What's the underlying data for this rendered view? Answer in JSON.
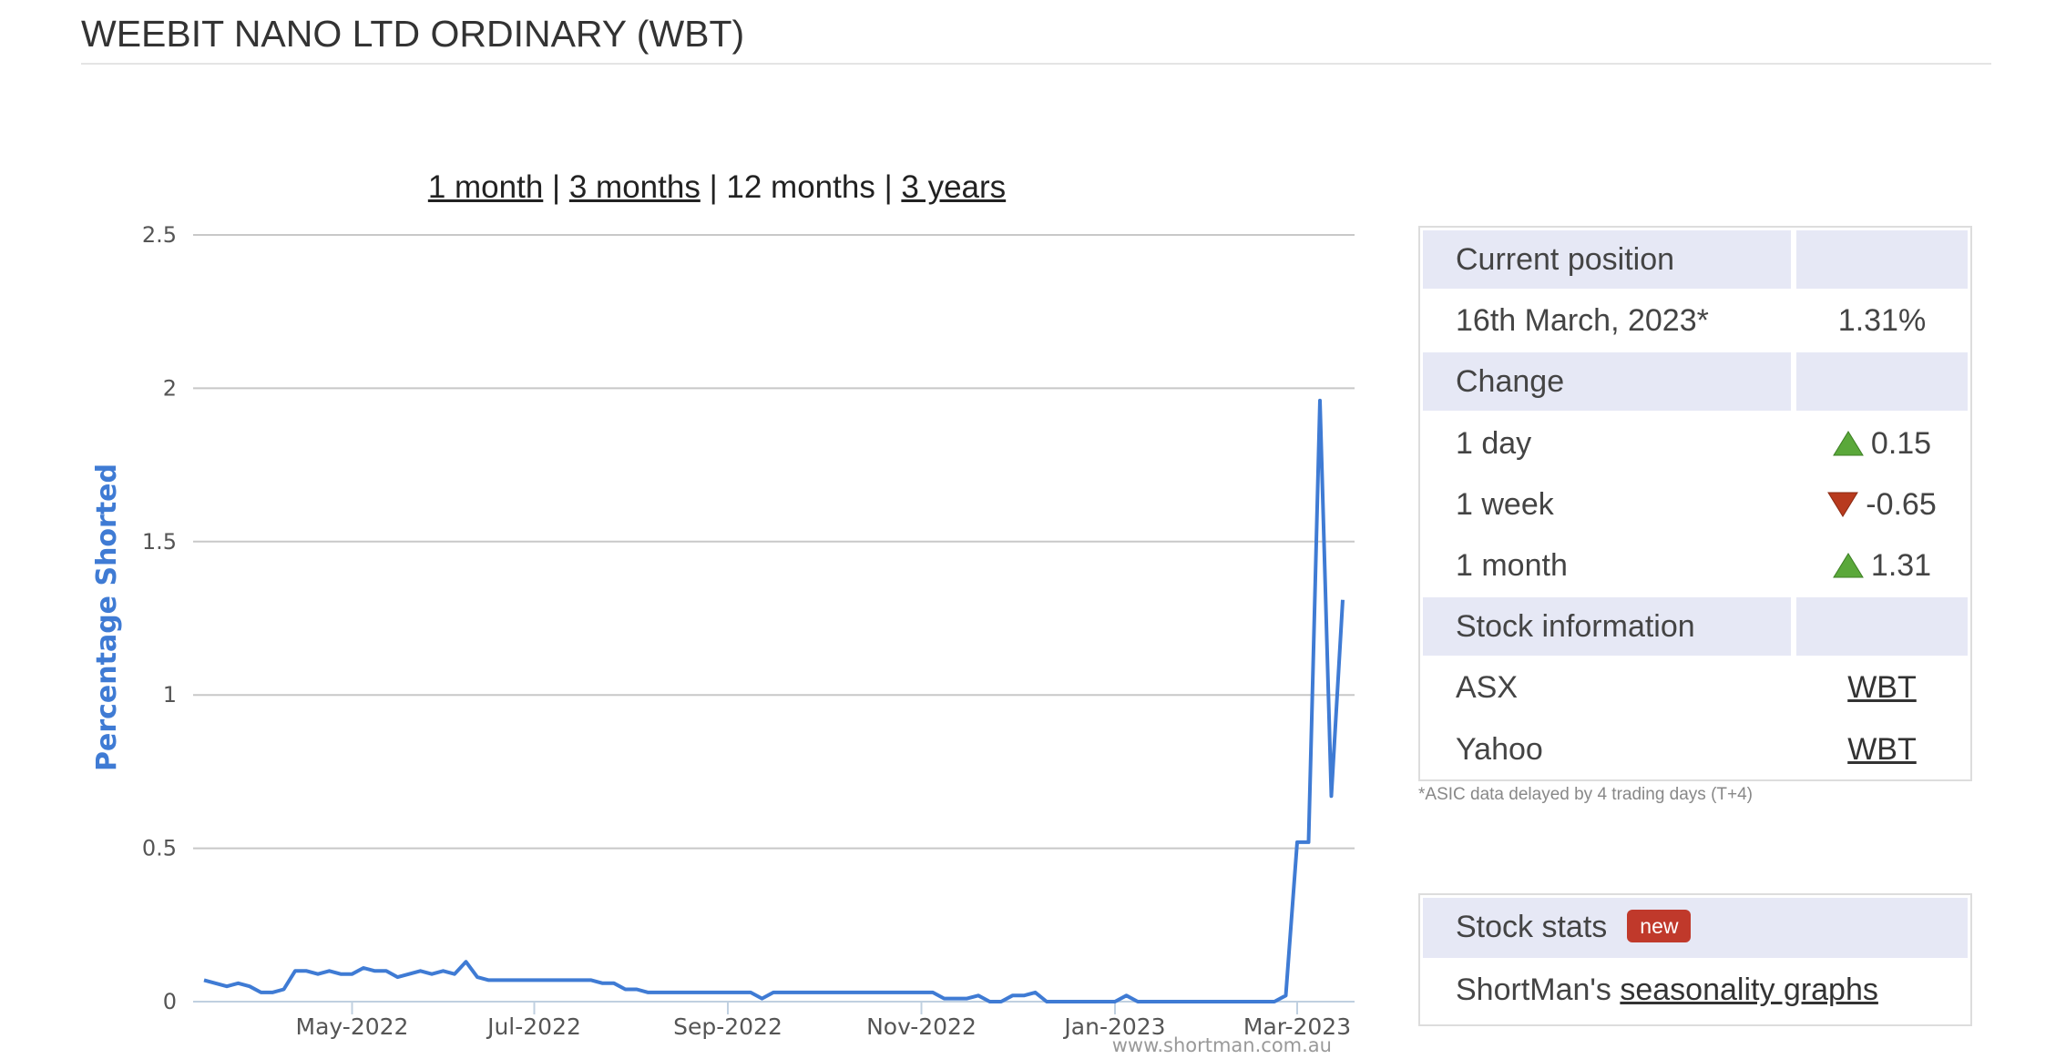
{
  "header": {
    "title": "WEEBIT NANO LTD ORDINARY (WBT)"
  },
  "range_links": [
    "1 month",
    "3 months",
    "12 months",
    "3 years"
  ],
  "range_separator": "|",
  "chart_data": {
    "type": "line",
    "y_label": "Percentage Shorted",
    "color": "#3f7bd4",
    "categories": [
      null,
      null,
      null,
      null,
      null,
      null,
      null,
      null,
      null,
      null,
      null,
      null,
      null,
      "May-2022",
      null,
      null,
      null,
      null,
      null,
      null,
      null,
      null,
      null,
      null,
      null,
      null,
      null,
      null,
      null,
      "Jul-2022",
      null,
      null,
      null,
      null,
      null,
      null,
      null,
      null,
      null,
      null,
      null,
      null,
      null,
      null,
      null,
      null,
      "Sep-2022",
      null,
      null,
      null,
      null,
      null,
      null,
      null,
      null,
      null,
      null,
      null,
      null,
      null,
      null,
      null,
      null,
      "Nov-2022",
      null,
      null,
      null,
      null,
      null,
      null,
      null,
      null,
      null,
      null,
      null,
      null,
      null,
      null,
      null,
      null,
      "Jan-2023",
      null,
      null,
      null,
      null,
      null,
      null,
      null,
      null,
      null,
      null,
      null,
      null,
      null,
      null,
      null,
      "Mar-2023",
      null,
      null,
      null,
      null
    ],
    "values": [
      0.07,
      0.06,
      0.05,
      0.06,
      0.05,
      0.03,
      0.03,
      0.04,
      0.1,
      0.1,
      0.09,
      0.1,
      0.09,
      0.09,
      0.11,
      0.1,
      0.1,
      0.08,
      0.09,
      0.1,
      0.09,
      0.1,
      0.09,
      0.13,
      0.08,
      0.07,
      0.07,
      0.07,
      0.07,
      0.07,
      0.07,
      0.07,
      0.07,
      0.07,
      0.07,
      0.06,
      0.06,
      0.04,
      0.04,
      0.03,
      0.03,
      0.03,
      0.03,
      0.03,
      0.03,
      0.03,
      0.03,
      0.03,
      0.03,
      0.01,
      0.03,
      0.03,
      0.03,
      0.03,
      0.03,
      0.03,
      0.03,
      0.03,
      0.03,
      0.03,
      0.03,
      0.03,
      0.03,
      0.03,
      0.03,
      0.01,
      0.01,
      0.01,
      0.02,
      0,
      0,
      0.02,
      0.02,
      0.03,
      0,
      0,
      0,
      0,
      0,
      0,
      0,
      0.02,
      0,
      0,
      0,
      0,
      0,
      0,
      0,
      0,
      0,
      0,
      0,
      0,
      0,
      0.02,
      0.52,
      0.52,
      1.96,
      0.67,
      1.31
    ],
    "ylim": [
      0,
      2.5
    ],
    "yticks": [
      0,
      0.5,
      1,
      1.5,
      2,
      2.5
    ],
    "grid": true,
    "watermark": "www.shortman.com.au"
  },
  "table": {
    "rows": [
      [
        "Current position"
      ],
      [
        "16th March, 2023*",
        "1.31%"
      ],
      [
        "Change"
      ],
      [
        "1 day",
        0.15
      ],
      [
        "1 week",
        -0.65
      ],
      [
        "1 month",
        1.31
      ],
      [
        "Stock information"
      ],
      [
        "ASX",
        "WBT"
      ],
      [
        "Yahoo",
        "WBT"
      ]
    ]
  },
  "note": "*ASIC data delayed by 4 trading days (T+4)",
  "stats": {
    "title": "Stock stats",
    "badge": "new",
    "prefix": "ShortMan's",
    "link": "seasonality graphs"
  }
}
